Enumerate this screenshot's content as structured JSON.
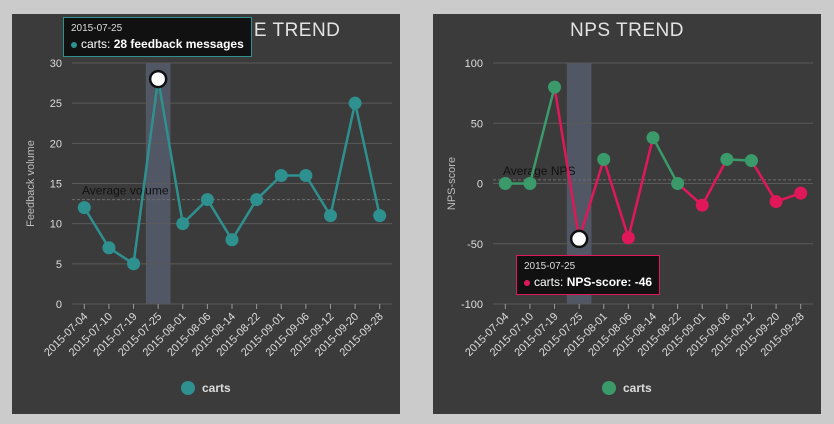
{
  "chart_data": [
    {
      "type": "line",
      "title": "FEEDBACK VOLUME TREND",
      "ylabel": "Feedback volume",
      "xlabel": "",
      "ylim": [
        0,
        30
      ],
      "yticks": [
        0,
        5,
        10,
        15,
        20,
        25,
        30
      ],
      "categories": [
        "2015-07-04",
        "2015-07-10",
        "2015-07-19",
        "2015-07-25",
        "2015-08-01",
        "2015-08-06",
        "2015-08-14",
        "2015-08-22",
        "2015-09-01",
        "2015-09-06",
        "2015-09-12",
        "2015-09-20",
        "2015-09-28"
      ],
      "series": [
        {
          "name": "carts",
          "values": [
            12,
            7,
            5,
            28,
            10,
            13,
            8,
            13,
            16,
            16,
            11,
            25,
            11
          ]
        }
      ],
      "average": {
        "label": "Average volume",
        "value": 13
      },
      "highlight_index": 3,
      "tooltip": {
        "date": "2015-07-25",
        "series": "carts:",
        "value_text": "28 feedback messages"
      },
      "legend": {
        "position": "bottom-center",
        "items": [
          "carts"
        ]
      },
      "colors": {
        "line": "#2e9190",
        "negative": "#2e9190",
        "grid": "#5a5a5a",
        "band": "#596273"
      },
      "grid": true
    },
    {
      "type": "line",
      "title": "NPS TREND",
      "ylabel": "NPS-score",
      "xlabel": "",
      "ylim": [
        -100,
        100
      ],
      "yticks": [
        -100,
        -50,
        0,
        50,
        100
      ],
      "categories": [
        "2015-07-04",
        "2015-07-10",
        "2015-07-19",
        "2015-07-25",
        "2015-08-01",
        "2015-08-06",
        "2015-08-14",
        "2015-08-22",
        "2015-09-01",
        "2015-09-06",
        "2015-09-12",
        "2015-09-20",
        "2015-09-28"
      ],
      "series": [
        {
          "name": "carts",
          "values": [
            0,
            0,
            80,
            -46,
            20,
            -45,
            38,
            0,
            -18,
            20,
            19,
            -15,
            -8
          ]
        }
      ],
      "average": {
        "label": "Average NPS",
        "value": 3
      },
      "highlight_index": 3,
      "tooltip": {
        "date": "2015-07-25",
        "series": "carts:",
        "value_text": "NPS-score: -46"
      },
      "legend": {
        "position": "bottom-center",
        "items": [
          "carts"
        ]
      },
      "colors": {
        "line": "#3a9a6a",
        "negative": "#e0185a",
        "grid": "#5a5a5a",
        "band": "#596273"
      },
      "grid": true
    }
  ]
}
